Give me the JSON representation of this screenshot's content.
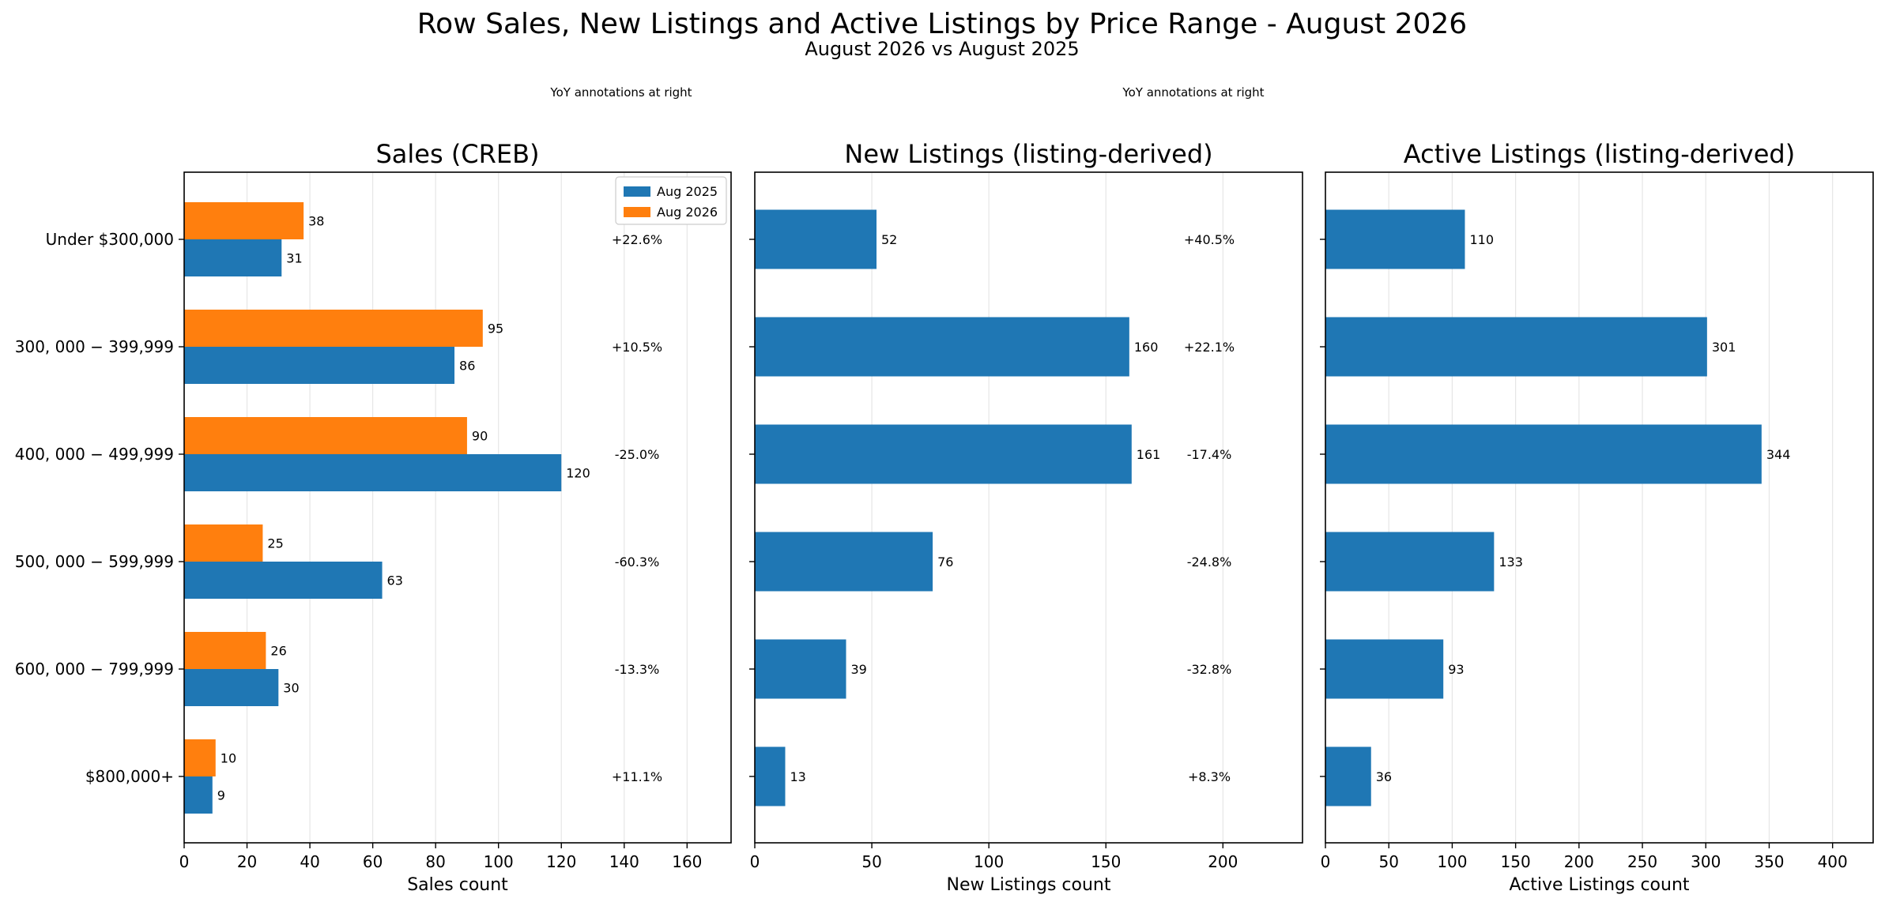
{
  "figure": {
    "title": "Row Sales, New Listings and Active Listings by Price Range - August 2026",
    "subtitle": "August 2026 vs August 2025",
    "colors": {
      "aug2025": "#1f77b4",
      "aug2026": "#ff7f0e",
      "grid": "#e6e6e6"
    }
  },
  "chart_data": [
    {
      "type": "bar",
      "orientation": "horizontal",
      "title": "Sales (CREB)",
      "xlabel": "Sales count",
      "ylabel": "",
      "xlim": [
        0,
        174
      ],
      "xticks": [
        0,
        20,
        40,
        60,
        80,
        100,
        120,
        140,
        160
      ],
      "grid": true,
      "legend": "upper right",
      "note": "YoY annotations at right",
      "categories": [
        "Under $300,000",
        "$300,000−$399,999",
        "$400,000−$499,999",
        "$500,000−$599,999",
        "$600,000−$799,999",
        "$800,000+"
      ],
      "category_tick_labels": [
        "Under $300,000",
        "300, 000 − 399,999",
        "400, 000 − 499,999",
        "500, 000 − 599,999",
        "600, 000 − 799,999",
        "$800,000+"
      ],
      "series": [
        {
          "name": "Aug 2025",
          "color": "#1f77b4",
          "values": [
            31,
            86,
            120,
            63,
            30,
            9
          ]
        },
        {
          "name": "Aug 2026",
          "color": "#ff7f0e",
          "values": [
            38,
            95,
            90,
            25,
            26,
            10
          ]
        }
      ],
      "yoy": [
        "+22.6%",
        "+10.5%",
        "-25.0%",
        "-60.3%",
        "-13.3%",
        "+11.1%"
      ]
    },
    {
      "type": "bar",
      "orientation": "horizontal",
      "title": "New Listings (listing-derived)",
      "xlabel": "New Listings count",
      "ylabel": "",
      "xlim": [
        0,
        234
      ],
      "xticks": [
        0,
        50,
        100,
        150,
        200
      ],
      "grid": true,
      "note": "YoY annotations at right",
      "categories": [
        "Under $300,000",
        "$300,000−$399,999",
        "$400,000−$499,999",
        "$500,000−$599,999",
        "$600,000−$799,999",
        "$800,000+"
      ],
      "series": [
        {
          "name": "",
          "color": "#1f77b4",
          "values": [
            52,
            160,
            161,
            76,
            39,
            13
          ]
        }
      ],
      "yoy": [
        "+40.5%",
        "+22.1%",
        "-17.4%",
        "-24.8%",
        "-32.8%",
        "+8.3%"
      ]
    },
    {
      "type": "bar",
      "orientation": "horizontal",
      "title": "Active Listings (listing-derived)",
      "xlabel": "Active Listings count",
      "ylabel": "",
      "xlim": [
        0,
        432
      ],
      "xticks": [
        0,
        50,
        100,
        150,
        200,
        250,
        300,
        350,
        400
      ],
      "grid": true,
      "categories": [
        "Under $300,000",
        "$300,000−$399,999",
        "$400,000−$499,999",
        "$500,000−$599,999",
        "$600,000−$799,999",
        "$800,000+"
      ],
      "series": [
        {
          "name": "",
          "color": "#1f77b4",
          "values": [
            110,
            301,
            344,
            133,
            93,
            36
          ]
        }
      ]
    }
  ]
}
